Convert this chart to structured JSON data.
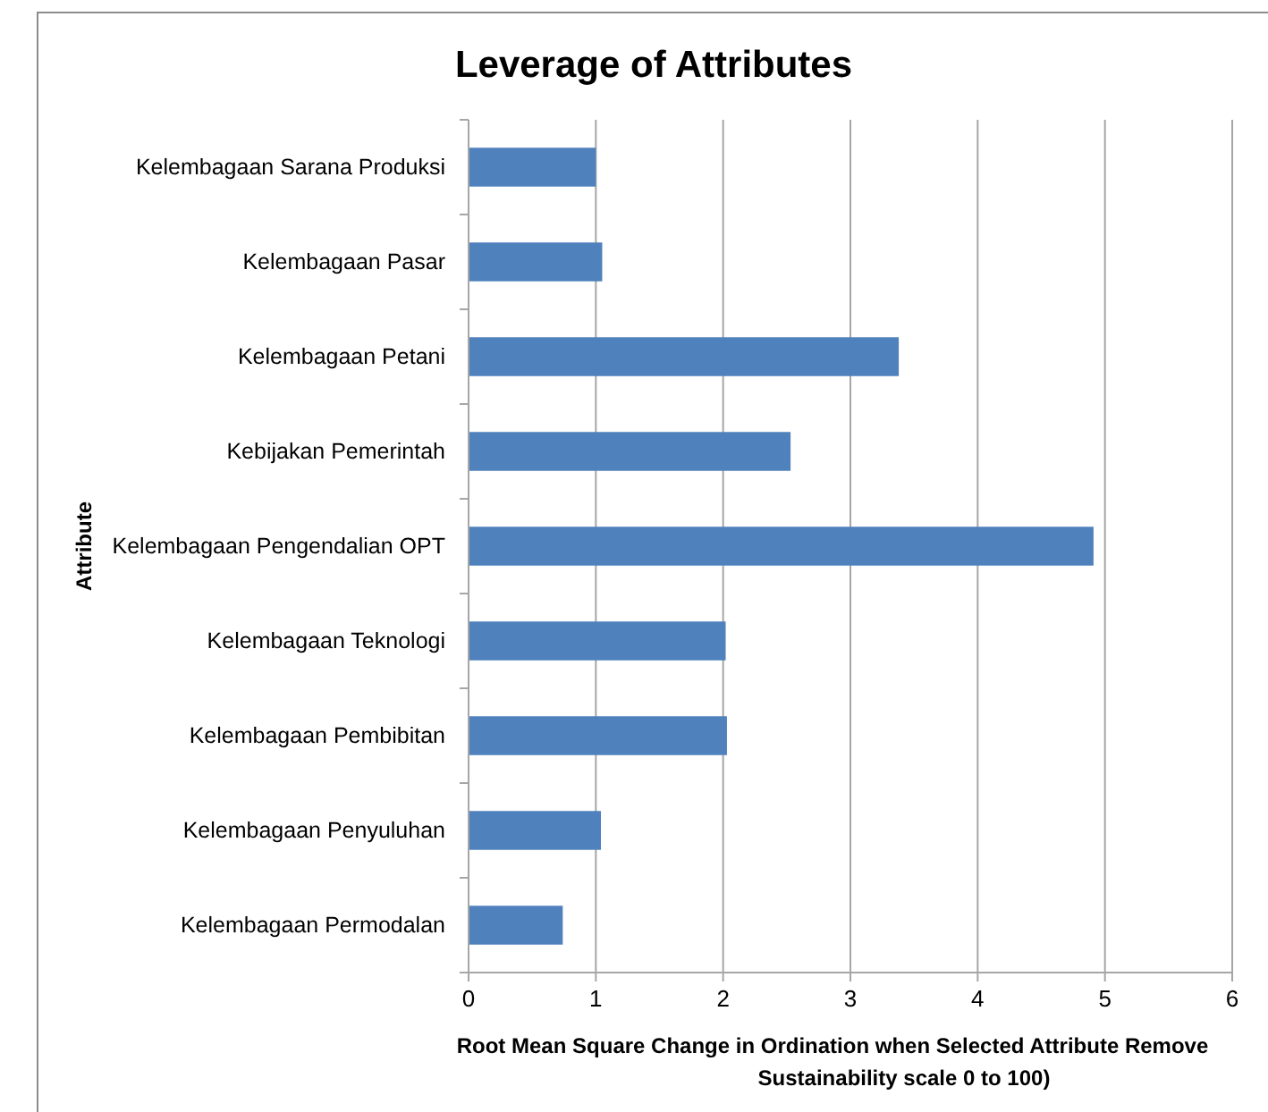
{
  "chart_data": {
    "type": "bar",
    "orientation": "horizontal",
    "title": "Leverage of Attributes",
    "xlabel": "Root Mean Square Change in Ordination when Selected Attribute Remove\nSustainability scale 0 to 100)",
    "ylabel": "Attribute",
    "categories": [
      "Kelembagaan Sarana Produksi",
      "Kelembagaan Pasar",
      "Kelembagaan Petani",
      "Kebijakan Pemerintah",
      "Kelembagaan Pengendalian OPT",
      "Kelembagaan Teknologi",
      "Kelembagaan Pembibitan",
      "Kelembagaan Penyuluhan",
      "Kelembagaan Permodalan"
    ],
    "values": [
      1.0,
      1.05,
      3.38,
      2.53,
      4.91,
      2.02,
      2.03,
      1.04,
      0.74
    ],
    "color": "#4f81bd",
    "xlim": [
      0,
      6
    ],
    "xticks": [
      0,
      1,
      2,
      3,
      4,
      5,
      6
    ],
    "grid": "x"
  }
}
